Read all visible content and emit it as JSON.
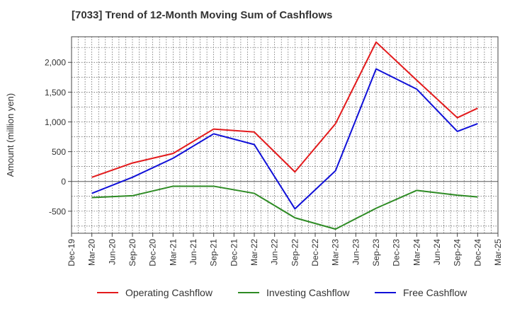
{
  "chart_data": {
    "type": "line",
    "title": "[7033]  Trend of 12-Month Moving Sum of Cashflows",
    "xlabel": "",
    "ylabel": "Amount (million yen)",
    "x_ticks": [
      "Dec-19",
      "Mar-20",
      "Jun-20",
      "Sep-20",
      "Dec-20",
      "Mar-21",
      "Jun-21",
      "Sep-21",
      "Dec-21",
      "Mar-22",
      "Jun-22",
      "Sep-22",
      "Dec-22",
      "Mar-23",
      "Jun-23",
      "Sep-23",
      "Dec-23",
      "Mar-24",
      "Jun-24",
      "Sep-24",
      "Dec-24",
      "Mar-25"
    ],
    "y_ticks": [
      -500,
      0,
      500,
      1000,
      1500,
      2000
    ],
    "y_tick_labels": [
      "-500",
      "0",
      "500",
      "1,000",
      "1,500",
      "2,000"
    ],
    "ylim": [
      -870,
      2430
    ],
    "grid": true,
    "legend_position": "bottom",
    "x": [
      "Mar-20",
      "Sep-20",
      "Mar-21",
      "Sep-21",
      "Mar-22",
      "Sep-22",
      "Mar-23",
      "Sep-23",
      "Mar-24",
      "Sep-24",
      "Dec-24"
    ],
    "series": [
      {
        "name": "Operating Cashflow",
        "color": "#e31a1c",
        "values": [
          70,
          310,
          470,
          880,
          830,
          160,
          970,
          2340,
          1700,
          1070,
          1230
        ]
      },
      {
        "name": "Investing Cashflow",
        "color": "#2e8b24",
        "values": [
          -270,
          -240,
          -80,
          -80,
          -200,
          -610,
          -800,
          -450,
          -150,
          -230,
          -260
        ]
      },
      {
        "name": "Free Cashflow",
        "color": "#1010d8",
        "values": [
          -200,
          70,
          390,
          800,
          620,
          -460,
          180,
          1890,
          1550,
          840,
          970
        ]
      }
    ]
  }
}
